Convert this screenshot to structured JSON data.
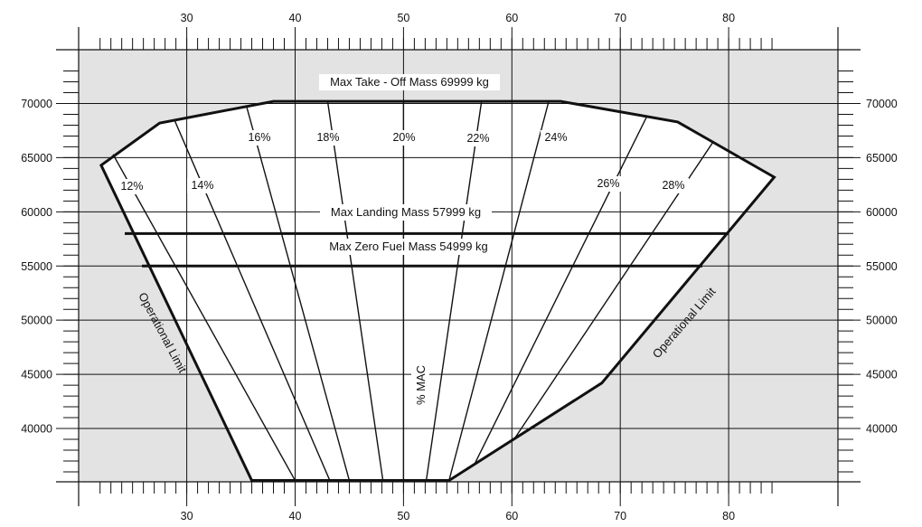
{
  "colors": {
    "plot_background": "#e3e3e3",
    "envelope_fill": "#ffffff",
    "grid": "#111111",
    "envelope_stroke": "#111111",
    "text": "#111111"
  },
  "chart_data": {
    "type": "diagram",
    "x_ticks": [
      30,
      40,
      50,
      60,
      70,
      80
    ],
    "y_ticks": [
      70000,
      65000,
      60000,
      55000,
      50000,
      45000,
      40000
    ],
    "x_tick_labels": [
      "30",
      "40",
      "50",
      "60",
      "70",
      "80"
    ],
    "y_tick_labels": [
      "70000",
      "65000",
      "60000",
      "55000",
      "50000",
      "45000",
      "40000"
    ],
    "axis_label": "% MAC",
    "mass_limits": [
      {
        "label": "Max Take - Off Mass 69999 kg",
        "mass": 69999
      },
      {
        "label": "Max Landing Mass 57999 kg",
        "mass": 57999
      },
      {
        "label": "Max Zero Fuel Mass 54999 kg",
        "mass": 54999
      }
    ],
    "operational_limit_labels": [
      "Operational Limit",
      "Operational Limit"
    ],
    "envelope": [
      {
        "x": 22.1,
        "y": 64300
      },
      {
        "x": 27.5,
        "y": 68200
      },
      {
        "x": 38.0,
        "y": 70200
      },
      {
        "x": 64.5,
        "y": 70200
      },
      {
        "x": 75.3,
        "y": 68300
      },
      {
        "x": 84.2,
        "y": 63200
      },
      {
        "x": 68.3,
        "y": 44200
      },
      {
        "x": 54.2,
        "y": 35200
      },
      {
        "x": 36.0,
        "y": 35200
      }
    ],
    "mac_lines": [
      {
        "label": "12%",
        "top": {
          "x": 23.2,
          "y": 65300
        },
        "bottom": {
          "x": 40.0,
          "y": 35200
        }
      },
      {
        "label": "14%",
        "top": {
          "x": 28.9,
          "y": 68400
        },
        "bottom": {
          "x": 43.2,
          "y": 35200
        }
      },
      {
        "label": "16%",
        "top": {
          "x": 35.5,
          "y": 69800
        },
        "bottom": {
          "x": 45.0,
          "y": 35200
        }
      },
      {
        "label": "18%",
        "top": {
          "x": 43.0,
          "y": 70200
        },
        "bottom": {
          "x": 48.1,
          "y": 35200
        }
      },
      {
        "label": "20%",
        "top": {
          "x": 50.0,
          "y": 70200
        },
        "bottom": {
          "x": 50.0,
          "y": 35200
        }
      },
      {
        "label": "22%",
        "top": {
          "x": 57.2,
          "y": 70200
        },
        "bottom": {
          "x": 52.1,
          "y": 35200
        }
      },
      {
        "label": "24%",
        "top": {
          "x": 63.4,
          "y": 70200
        },
        "bottom": {
          "x": 54.2,
          "y": 35200
        }
      },
      {
        "label": "26%",
        "top": {
          "x": 72.5,
          "y": 68900
        },
        "bottom": {
          "x": 56.5,
          "y": 36600
        }
      },
      {
        "label": "28%",
        "top": {
          "x": 78.6,
          "y": 66500
        },
        "bottom": {
          "x": 60.2,
          "y": 39000
        }
      }
    ]
  }
}
